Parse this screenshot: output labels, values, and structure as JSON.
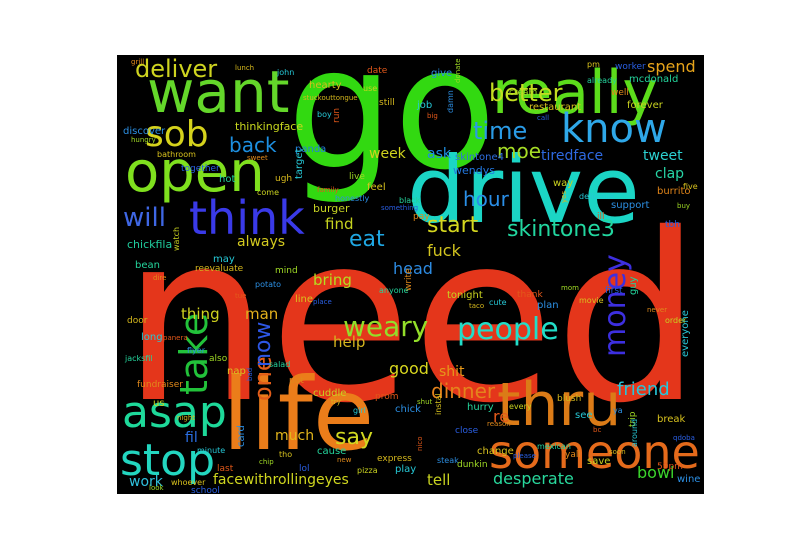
{
  "words": [
    {
      "text": "need",
      "color": "#e4361b"
    },
    {
      "text": "go",
      "color": "#32d911"
    },
    {
      "text": "drive",
      "color": "#1bd5c5"
    },
    {
      "text": "life",
      "color": "#eb7d1a"
    },
    {
      "text": "want",
      "color": "#64d72a"
    },
    {
      "text": "really",
      "color": "#5cdc1b"
    },
    {
      "text": "open",
      "color": "#7fe01e"
    },
    {
      "text": "think",
      "color": "#3a3ae8"
    },
    {
      "text": "know",
      "color": "#2fa8e9"
    },
    {
      "text": "sob",
      "color": "#d5d21c"
    },
    {
      "text": "asap",
      "color": "#1ed99a"
    },
    {
      "text": "thru",
      "color": "#db7b17"
    },
    {
      "text": "someone",
      "color": "#e46a1b"
    },
    {
      "text": "stop",
      "color": "#23d6c0"
    },
    {
      "text": "take",
      "color": "#22c23a"
    },
    {
      "text": "money",
      "color": "#3d2fe0"
    },
    {
      "text": "people",
      "color": "#22ddc8"
    },
    {
      "text": "weary",
      "color": "#93de2a"
    },
    {
      "text": "deliver",
      "color": "#cfd420"
    },
    {
      "text": "better",
      "color": "#c3dd21"
    },
    {
      "text": "time",
      "color": "#2a9be6"
    },
    {
      "text": "moe",
      "color": "#a5dc25"
    },
    {
      "text": "back",
      "color": "#1d8fe0"
    },
    {
      "text": "will",
      "color": "#3f67e4"
    },
    {
      "text": "hour",
      "color": "#2a8fe8"
    },
    {
      "text": "start",
      "color": "#d6d81f"
    },
    {
      "text": "skintone3",
      "color": "#22d7a0"
    },
    {
      "text": "eat",
      "color": "#1fa7e3"
    },
    {
      "text": "one",
      "color": "#e25c18"
    },
    {
      "text": "now",
      "color": "#2d57e6"
    },
    {
      "text": "say",
      "color": "#d2d920"
    },
    {
      "text": "dinner",
      "color": "#e5831c"
    },
    {
      "text": "friend",
      "color": "#27c6da"
    },
    {
      "text": "spend",
      "color": "#e7a41a"
    },
    {
      "text": "tweet",
      "color": "#2cd2d3"
    },
    {
      "text": "clap",
      "color": "#27d5a6"
    },
    {
      "text": "fuck",
      "color": "#d2c41f"
    },
    {
      "text": "bowl",
      "color": "#3bd42c"
    },
    {
      "text": "desperate",
      "color": "#28d89c"
    },
    {
      "text": "tell",
      "color": "#c7d220"
    },
    {
      "text": "facewithrollingeyes",
      "color": "#d0d71f"
    },
    {
      "text": "much",
      "color": "#e4b61b"
    },
    {
      "text": "fil",
      "color": "#2a6fe3"
    },
    {
      "text": "work",
      "color": "#2fc0dc"
    },
    {
      "text": "shit",
      "color": "#e6981a"
    },
    {
      "text": "good",
      "color": "#d8d71e"
    },
    {
      "text": "re",
      "color": "#e45a1a"
    },
    {
      "text": "head",
      "color": "#2d8be2"
    },
    {
      "text": "find",
      "color": "#c5d21f"
    },
    {
      "text": "man",
      "color": "#e2b01c"
    },
    {
      "text": "thing",
      "color": "#d1d31f"
    },
    {
      "text": "bring",
      "color": "#b6dd21"
    },
    {
      "text": "help",
      "color": "#d6b61f"
    },
    {
      "text": "always",
      "color": "#d2c91f"
    },
    {
      "text": "week",
      "color": "#cfd21e"
    },
    {
      "text": "ask",
      "color": "#1f8ee0"
    },
    {
      "text": "tiredface",
      "color": "#2e69e0"
    },
    {
      "text": "panda",
      "color": "#2380d8"
    },
    {
      "text": "hearty",
      "color": "#d5bf1d"
    },
    {
      "text": "burrito",
      "color": "#e08419"
    },
    {
      "text": "burger",
      "color": "#c6d223"
    },
    {
      "text": "chickfila",
      "color": "#20cd9e"
    },
    {
      "text": "thinkingface",
      "color": "#c9d81f"
    },
    {
      "text": "skintone4",
      "color": "#2f6fe0"
    },
    {
      "text": "wendys",
      "color": "#2378e0"
    },
    {
      "text": "everyone",
      "color": "#28c6d6"
    }
  ],
  "small_words": [
    "lunch",
    "john",
    "date",
    "give",
    "donate",
    "pm",
    "worker",
    "mcdonald",
    "grill",
    "use",
    "still",
    "job",
    "big",
    "damn",
    "cream",
    "restaurant",
    "call",
    "already",
    "well",
    "forever",
    "stuckouttongue",
    "boy",
    "run",
    "discover",
    "hungry",
    "bathroom",
    "together",
    "hot",
    "sweet",
    "come",
    "ugh",
    "target",
    "family",
    "honestly",
    "live",
    "feel",
    "something",
    "black",
    "pay",
    "way",
    "yes",
    "delicious",
    "ill",
    "support",
    "buy",
    "five",
    "tbh",
    "bean",
    "dire",
    "watch",
    "reevaluate",
    "may",
    "tue",
    "potato",
    "mind",
    "line",
    "place",
    "anyone",
    "write",
    "tonight",
    "taco",
    "cute",
    "thank",
    "plan",
    "mom",
    "movie",
    "first",
    "guy",
    "never",
    "order",
    "door",
    "long",
    "panera",
    "flyer",
    "also",
    "nap",
    "bad",
    "salad",
    "put",
    "cuddle",
    "try",
    "girl",
    "prom",
    "chick",
    "shut",
    "instal",
    "close",
    "hurry",
    "reason",
    "every",
    "blush",
    "see",
    "bc",
    "ya",
    "trip",
    "break",
    "qdoba",
    "jacksfil",
    "fundraiser",
    "us",
    "night",
    "minute",
    "last",
    "card",
    "chip",
    "tho",
    "lol",
    "cause",
    "new",
    "pizza",
    "express",
    "play",
    "nico",
    "steak",
    "dunkin",
    "change",
    "please",
    "mexican",
    "yall",
    "save",
    "soon",
    "around",
    "59pm",
    "wine",
    "look",
    "whoever",
    "school"
  ]
}
